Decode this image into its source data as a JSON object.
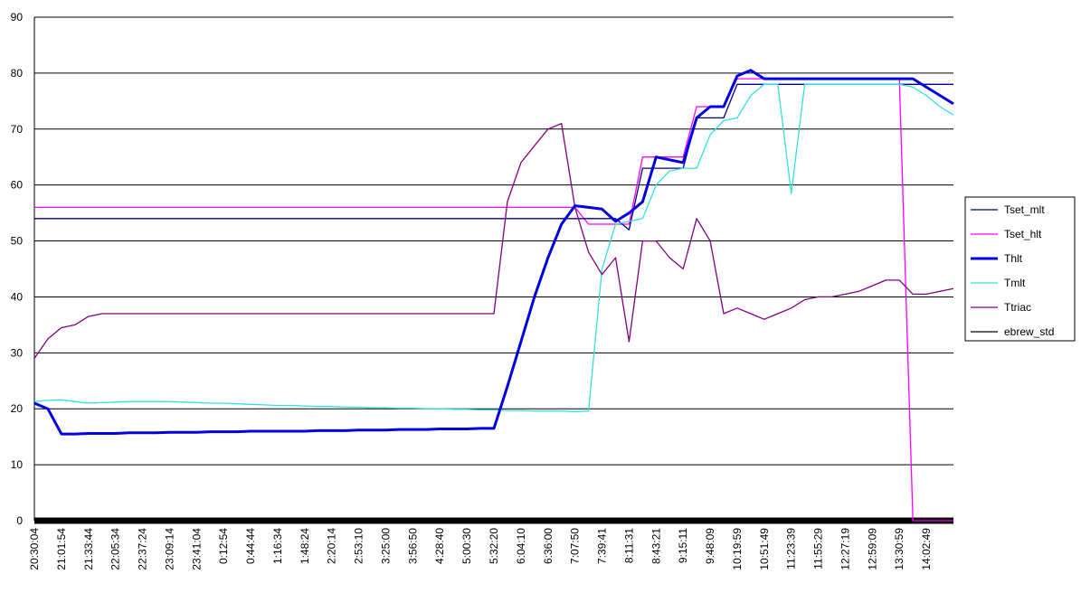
{
  "chart_data": {
    "type": "line",
    "categories": [
      "20:30:04",
      null,
      "21:01:54",
      null,
      "21:33:44",
      null,
      "22:05:34",
      null,
      "22:37:24",
      null,
      "23:09:14",
      null,
      "23:41:04",
      null,
      "0:12:54",
      null,
      "0:44:44",
      null,
      "1:16:34",
      null,
      "1:48:24",
      null,
      "2:20:14",
      null,
      "2:53:10",
      null,
      "3:25:00",
      null,
      "3:56:50",
      null,
      "4:28:40",
      null,
      "5:00:30",
      null,
      "5:32:20",
      null,
      "6:04:10",
      null,
      "6:36:00",
      null,
      "7:07:50",
      null,
      "7:39:41",
      null,
      "8:11:31",
      null,
      "8:43:21",
      null,
      "9:15:11",
      null,
      "9:48:09",
      null,
      "10:19:59",
      null,
      "10:51:49",
      null,
      "11:23:39",
      null,
      "11:55:29",
      null,
      "12:27:19",
      null,
      "12:59:09",
      null,
      "13:30:59",
      null,
      "14:02:49",
      null,
      null
    ],
    "ylim": [
      0,
      90
    ],
    "yticks": [
      0,
      10,
      20,
      30,
      40,
      50,
      60,
      70,
      80,
      90
    ],
    "grid": true,
    "series": [
      {
        "name": "Tset_mlt",
        "color": "#000080",
        "values": [
          54,
          54,
          54,
          54,
          54,
          54,
          54,
          54,
          54,
          54,
          54,
          54,
          54,
          54,
          54,
          54,
          54,
          54,
          54,
          54,
          54,
          54,
          54,
          54,
          54,
          54,
          54,
          54,
          54,
          54,
          54,
          54,
          54,
          54,
          54,
          54,
          54,
          54,
          54,
          54,
          54,
          54,
          54,
          54,
          52,
          63,
          63,
          63,
          63,
          72,
          72,
          72,
          78,
          78,
          78,
          78,
          78,
          78,
          78,
          78,
          78,
          78,
          78,
          78,
          78,
          78,
          78,
          78,
          78
        ]
      },
      {
        "name": "Tset_hlt",
        "color": "#ff00ff",
        "values": [
          56,
          56,
          56,
          56,
          56,
          56,
          56,
          56,
          56,
          56,
          56,
          56,
          56,
          56,
          56,
          56,
          56,
          56,
          56,
          56,
          56,
          56,
          56,
          56,
          56,
          56,
          56,
          56,
          56,
          56,
          56,
          56,
          56,
          56,
          56,
          56,
          56,
          56,
          56,
          56,
          56,
          53,
          53,
          53,
          53,
          65,
          65,
          65,
          65,
          74,
          74,
          74,
          79,
          79,
          79,
          79,
          79,
          79,
          79,
          79,
          79,
          79,
          79,
          79,
          79,
          0,
          0,
          0,
          0
        ]
      },
      {
        "name": "Thlt",
        "color": "#0000e0",
        "values": [
          21,
          20,
          15.5,
          15.5,
          15.6,
          15.6,
          15.6,
          15.7,
          15.7,
          15.7,
          15.8,
          15.8,
          15.8,
          15.9,
          15.9,
          15.9,
          16,
          16,
          16,
          16,
          16,
          16.1,
          16.1,
          16.1,
          16.2,
          16.2,
          16.2,
          16.3,
          16.3,
          16.3,
          16.4,
          16.4,
          16.4,
          16.5,
          16.5,
          24,
          32,
          40,
          47,
          53,
          56.3,
          56,
          55.7,
          53.5,
          55,
          57,
          65,
          64.5,
          64,
          72,
          74,
          74,
          79.5,
          80.5,
          79,
          79,
          79,
          79,
          79,
          79,
          79,
          79,
          79,
          79,
          79,
          79,
          77.5,
          76,
          74.5
        ]
      },
      {
        "name": "Tmlt",
        "color": "#33e0e0",
        "values": [
          21.3,
          21.5,
          21.6,
          21.3,
          21,
          21.1,
          21.2,
          21.3,
          21.3,
          21.3,
          21.3,
          21.2,
          21.1,
          21,
          21,
          20.9,
          20.8,
          20.7,
          20.6,
          20.6,
          20.5,
          20.4,
          20.4,
          20.3,
          20.3,
          20.2,
          20.2,
          20.1,
          20.1,
          20,
          20,
          19.9,
          19.9,
          19.8,
          19.8,
          19.7,
          19.7,
          19.6,
          19.6,
          19.6,
          19.5,
          19.6,
          45,
          53,
          53.5,
          54,
          60,
          62.5,
          63,
          63,
          69,
          71.5,
          72,
          76,
          78,
          78,
          58.5,
          78,
          78,
          78,
          78,
          78,
          78,
          78,
          78,
          77.5,
          76,
          74,
          72.5
        ]
      },
      {
        "name": "Ttriac",
        "color": "#800080",
        "values": [
          29,
          32.5,
          34.5,
          35,
          36.5,
          37,
          37,
          37,
          37,
          37,
          37,
          37,
          37,
          37,
          37,
          37,
          37,
          37,
          37,
          37,
          37,
          37,
          37,
          37,
          37,
          37,
          37,
          37,
          37,
          37,
          37,
          37,
          37,
          37,
          37,
          57,
          64,
          67,
          70,
          71,
          56,
          48,
          44,
          47,
          32,
          50,
          50,
          47,
          45,
          54,
          50,
          37,
          38,
          37,
          36,
          37,
          38,
          39.5,
          40,
          40,
          40.5,
          41,
          42,
          43,
          43,
          40.5,
          40.5,
          41,
          41.5
        ]
      },
      {
        "name": "ebrew_std",
        "color": "#000000",
        "values": [
          0,
          0,
          0,
          0,
          0,
          0,
          0,
          0,
          0,
          0,
          0,
          0,
          0,
          0,
          0,
          0,
          0,
          0,
          0,
          0,
          0,
          0,
          0,
          0,
          0,
          0,
          0,
          0,
          0,
          0,
          0,
          0,
          0,
          0,
          0,
          0,
          0,
          0,
          0,
          0,
          0,
          0,
          0,
          0,
          0,
          0,
          0,
          0,
          0,
          0,
          0,
          0,
          0,
          0,
          0,
          0,
          0,
          0,
          0,
          0,
          0,
          0,
          0,
          0,
          0,
          0,
          0,
          0,
          0
        ]
      }
    ]
  }
}
